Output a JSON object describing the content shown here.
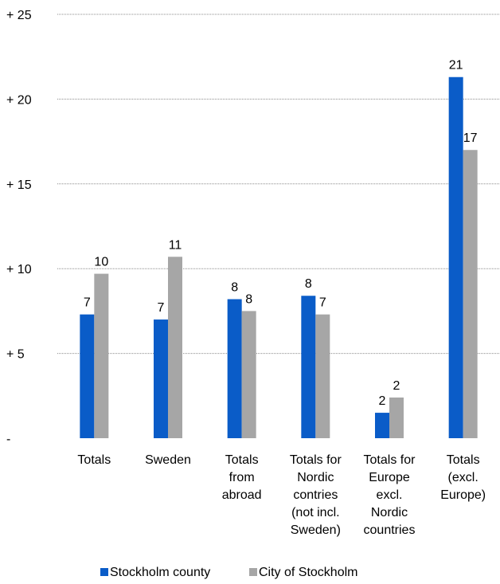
{
  "chart_data": {
    "type": "bar",
    "categories": [
      [
        "Totals"
      ],
      [
        "Sweden"
      ],
      [
        "Totals",
        "from",
        "abroad"
      ],
      [
        "Totals for",
        "Nordic",
        "contries",
        "(not incl.",
        "Sweden)"
      ],
      [
        "Totals for",
        "Europe",
        "excl.",
        "Nordic",
        "countries"
      ],
      [
        "Totals",
        "(excl.",
        "Europe)"
      ]
    ],
    "series": [
      {
        "name": "Stockholm county",
        "color": "#0a5cc8",
        "values": [
          7.3,
          7.0,
          8.2,
          8.4,
          1.5,
          21.3
        ],
        "labels": [
          "7",
          "7",
          "8",
          "8",
          "2",
          "21"
        ]
      },
      {
        "name": "City of Stockholm",
        "color": "#a6a6a6",
        "values": [
          9.7,
          10.7,
          7.5,
          7.3,
          2.4,
          17.0
        ],
        "labels": [
          "10",
          "11",
          "8",
          "7",
          "2",
          "17"
        ]
      }
    ],
    "ylim": [
      0,
      25
    ],
    "yticks": [
      0,
      5,
      10,
      15,
      20,
      25
    ],
    "ytick_labels": [
      "-",
      "+ 5",
      "+ 10",
      "+ 15",
      "+ 20",
      "+ 25"
    ],
    "grid": true,
    "legend": "bottom",
    "title": "",
    "xlabel": "",
    "ylabel": ""
  }
}
